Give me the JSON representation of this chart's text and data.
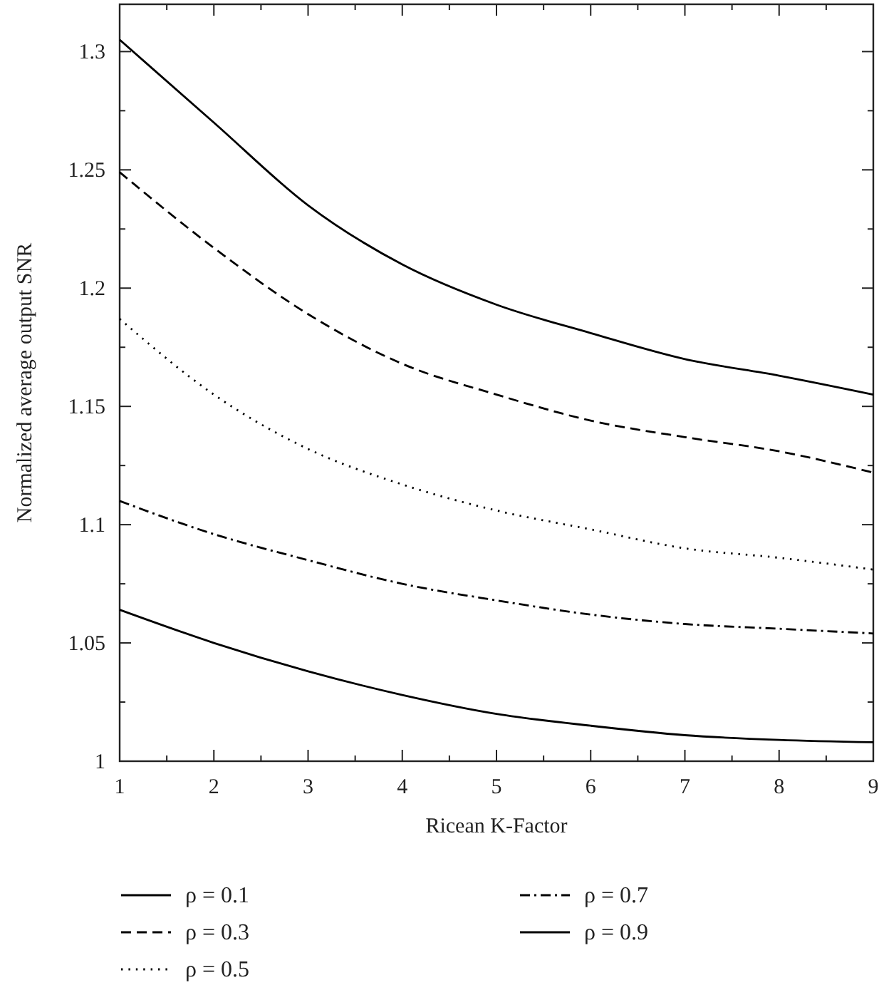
{
  "chart_data": {
    "type": "line",
    "xlabel": "Ricean K-Factor",
    "ylabel": "Normalized average output SNR",
    "x": [
      1,
      2,
      3,
      4,
      5,
      6,
      7,
      8,
      9
    ],
    "xlim": [
      1,
      9
    ],
    "xticks": [
      1,
      {
        "value": 1.5,
        "label": null
      },
      2,
      {
        "value": 2.5,
        "label": null
      },
      3,
      {
        "value": 3.5,
        "label": null
      },
      4,
      {
        "value": 4.5,
        "label": null
      },
      5,
      {
        "value": 5.5,
        "label": null
      },
      6,
      {
        "value": 6.5,
        "label": null
      },
      7,
      {
        "value": 7.5,
        "label": null
      },
      8,
      {
        "value": 8.5,
        "label": null
      },
      9
    ],
    "ylim": [
      1,
      1.32
    ],
    "yticks": [
      1,
      {
        "value": 1.025,
        "label": null
      },
      1.05,
      {
        "value": 1.075,
        "label": null
      },
      1.1,
      {
        "value": 1.125,
        "label": null
      },
      1.15,
      {
        "value": 1.175,
        "label": null
      },
      1.2,
      {
        "value": 1.225,
        "label": null
      },
      1.25,
      {
        "value": 1.275,
        "label": null
      },
      1.3
    ],
    "grid": false,
    "legend": "bottom",
    "marker": "none",
    "series": [
      {
        "name": "ρ = 0.1",
        "color": "#000000",
        "line_style": "solid",
        "values": [
          1.305,
          1.27,
          1.235,
          1.21,
          1.193,
          1.181,
          1.17,
          1.163,
          1.155
        ]
      },
      {
        "name": "ρ = 0.3",
        "color": "#000000",
        "line_style": "dashed",
        "values": [
          1.249,
          1.217,
          1.189,
          1.168,
          1.155,
          1.144,
          1.137,
          1.131,
          1.122
        ]
      },
      {
        "name": "ρ = 0.5",
        "color": "#000000",
        "line_style": "dotted",
        "values": [
          1.187,
          1.155,
          1.132,
          1.117,
          1.106,
          1.098,
          1.09,
          1.086,
          1.081
        ]
      },
      {
        "name": "ρ = 0.7",
        "color": "#000000",
        "line_style": "dashdot",
        "values": [
          1.11,
          1.096,
          1.085,
          1.075,
          1.068,
          1.062,
          1.058,
          1.056,
          1.054
        ]
      },
      {
        "name": "ρ = 0.9",
        "color": "#000000",
        "line_style": "solid",
        "values": [
          1.064,
          1.05,
          1.038,
          1.028,
          1.02,
          1.015,
          1.011,
          1.009,
          1.008
        ]
      }
    ]
  }
}
